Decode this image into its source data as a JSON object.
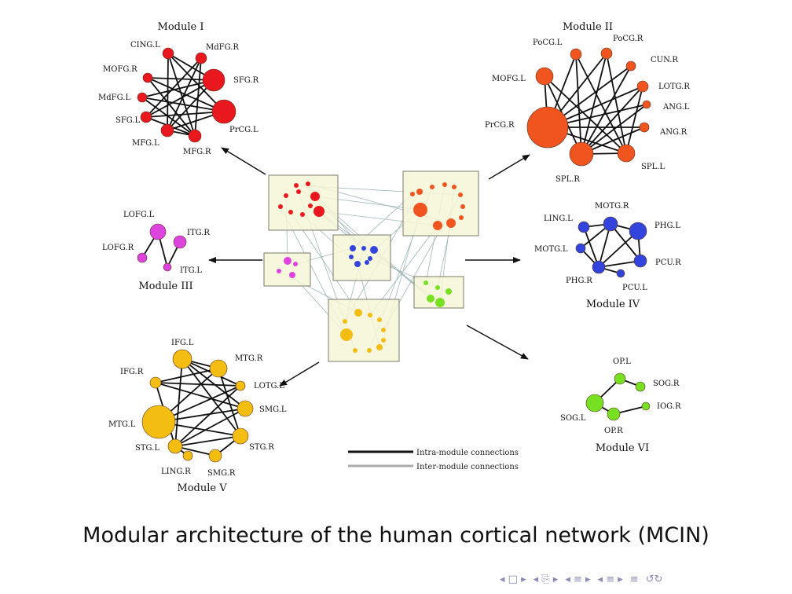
{
  "slide": {
    "caption": "Modular architecture of the human cortical network (MCIN)"
  },
  "legend": {
    "intra": "Intra-module connections",
    "inter": "Inter-module connections"
  },
  "modules": [
    {
      "id": "I",
      "title": "Module I",
      "color": "#e8181e",
      "nodes": [
        {
          "label": "CING.L",
          "r": 7
        },
        {
          "label": "MdFG.R",
          "r": 7
        },
        {
          "label": "MOFG.R",
          "r": 6
        },
        {
          "label": "SFG.R",
          "r": 14
        },
        {
          "label": "MdFG.L",
          "r": 6
        },
        {
          "label": "SFG.L",
          "r": 7
        },
        {
          "label": "PrCG.L",
          "r": 15
        },
        {
          "label": "MFG.L",
          "r": 8
        },
        {
          "label": "MFG.R",
          "r": 8
        }
      ]
    },
    {
      "id": "II",
      "title": "Module II",
      "color": "#f05520",
      "nodes": [
        {
          "label": "PoCG.L",
          "r": 7
        },
        {
          "label": "PoCG.R",
          "r": 7
        },
        {
          "label": "CUN.R",
          "r": 6
        },
        {
          "label": "MOFG.L",
          "r": 11
        },
        {
          "label": "LOTG.R",
          "r": 7
        },
        {
          "label": "ANG.L",
          "r": 5
        },
        {
          "label": "PrCG.R",
          "r": 26
        },
        {
          "label": "ANG.R",
          "r": 6
        },
        {
          "label": "SPL.R",
          "r": 15
        },
        {
          "label": "SPL.L",
          "r": 11
        }
      ]
    },
    {
      "id": "III",
      "title": "Module III",
      "color": "#dd44dd",
      "nodes": [
        {
          "label": "LOFG.L",
          "r": 10
        },
        {
          "label": "ITG.R",
          "r": 8
        },
        {
          "label": "LOFG.R",
          "r": 6
        },
        {
          "label": "ITG.L",
          "r": 5
        }
      ]
    },
    {
      "id": "IV",
      "title": "Module IV",
      "color": "#3344dd",
      "nodes": [
        {
          "label": "MOTG.R",
          "r": 9
        },
        {
          "label": "LING.L",
          "r": 7
        },
        {
          "label": "PHG.L",
          "r": 11
        },
        {
          "label": "MOTG.L",
          "r": 6
        },
        {
          "label": "PCU.R",
          "r": 8
        },
        {
          "label": "PHG.R",
          "r": 8
        },
        {
          "label": "PCU.L",
          "r": 5
        }
      ]
    },
    {
      "id": "V",
      "title": "Module V",
      "color": "#f3bd12",
      "nodes": [
        {
          "label": "IFG.L",
          "r": 12
        },
        {
          "label": "MTG.R",
          "r": 11
        },
        {
          "label": "IFG.R",
          "r": 7
        },
        {
          "label": "LOTG.L",
          "r": 6
        },
        {
          "label": "SMG.L",
          "r": 10
        },
        {
          "label": "MTG.L",
          "r": 21
        },
        {
          "label": "STG.L",
          "r": 9
        },
        {
          "label": "STG.R",
          "r": 10
        },
        {
          "label": "LING.R",
          "r": 6
        },
        {
          "label": "SMG.R",
          "r": 8
        }
      ]
    },
    {
      "id": "VI",
      "title": "Module VI",
      "color": "#77e022",
      "nodes": [
        {
          "label": "OP.L",
          "r": 7
        },
        {
          "label": "SOG.R",
          "r": 6
        },
        {
          "label": "IOG.R",
          "r": 5
        },
        {
          "label": "SOG.L",
          "r": 11
        },
        {
          "label": "OP.R",
          "r": 8
        }
      ]
    }
  ],
  "colors": {
    "intra_line": "#111111",
    "inter_line": "#9fb7b7",
    "box_fill": "#f5f6d6",
    "box_stroke": "#7a7a6a",
    "arrow": "#111111"
  },
  "nav_icons": [
    "first-icon",
    "prev-icon",
    "section-icon",
    "subsection-icon",
    "next-icon",
    "last-icon",
    "search-icon"
  ]
}
